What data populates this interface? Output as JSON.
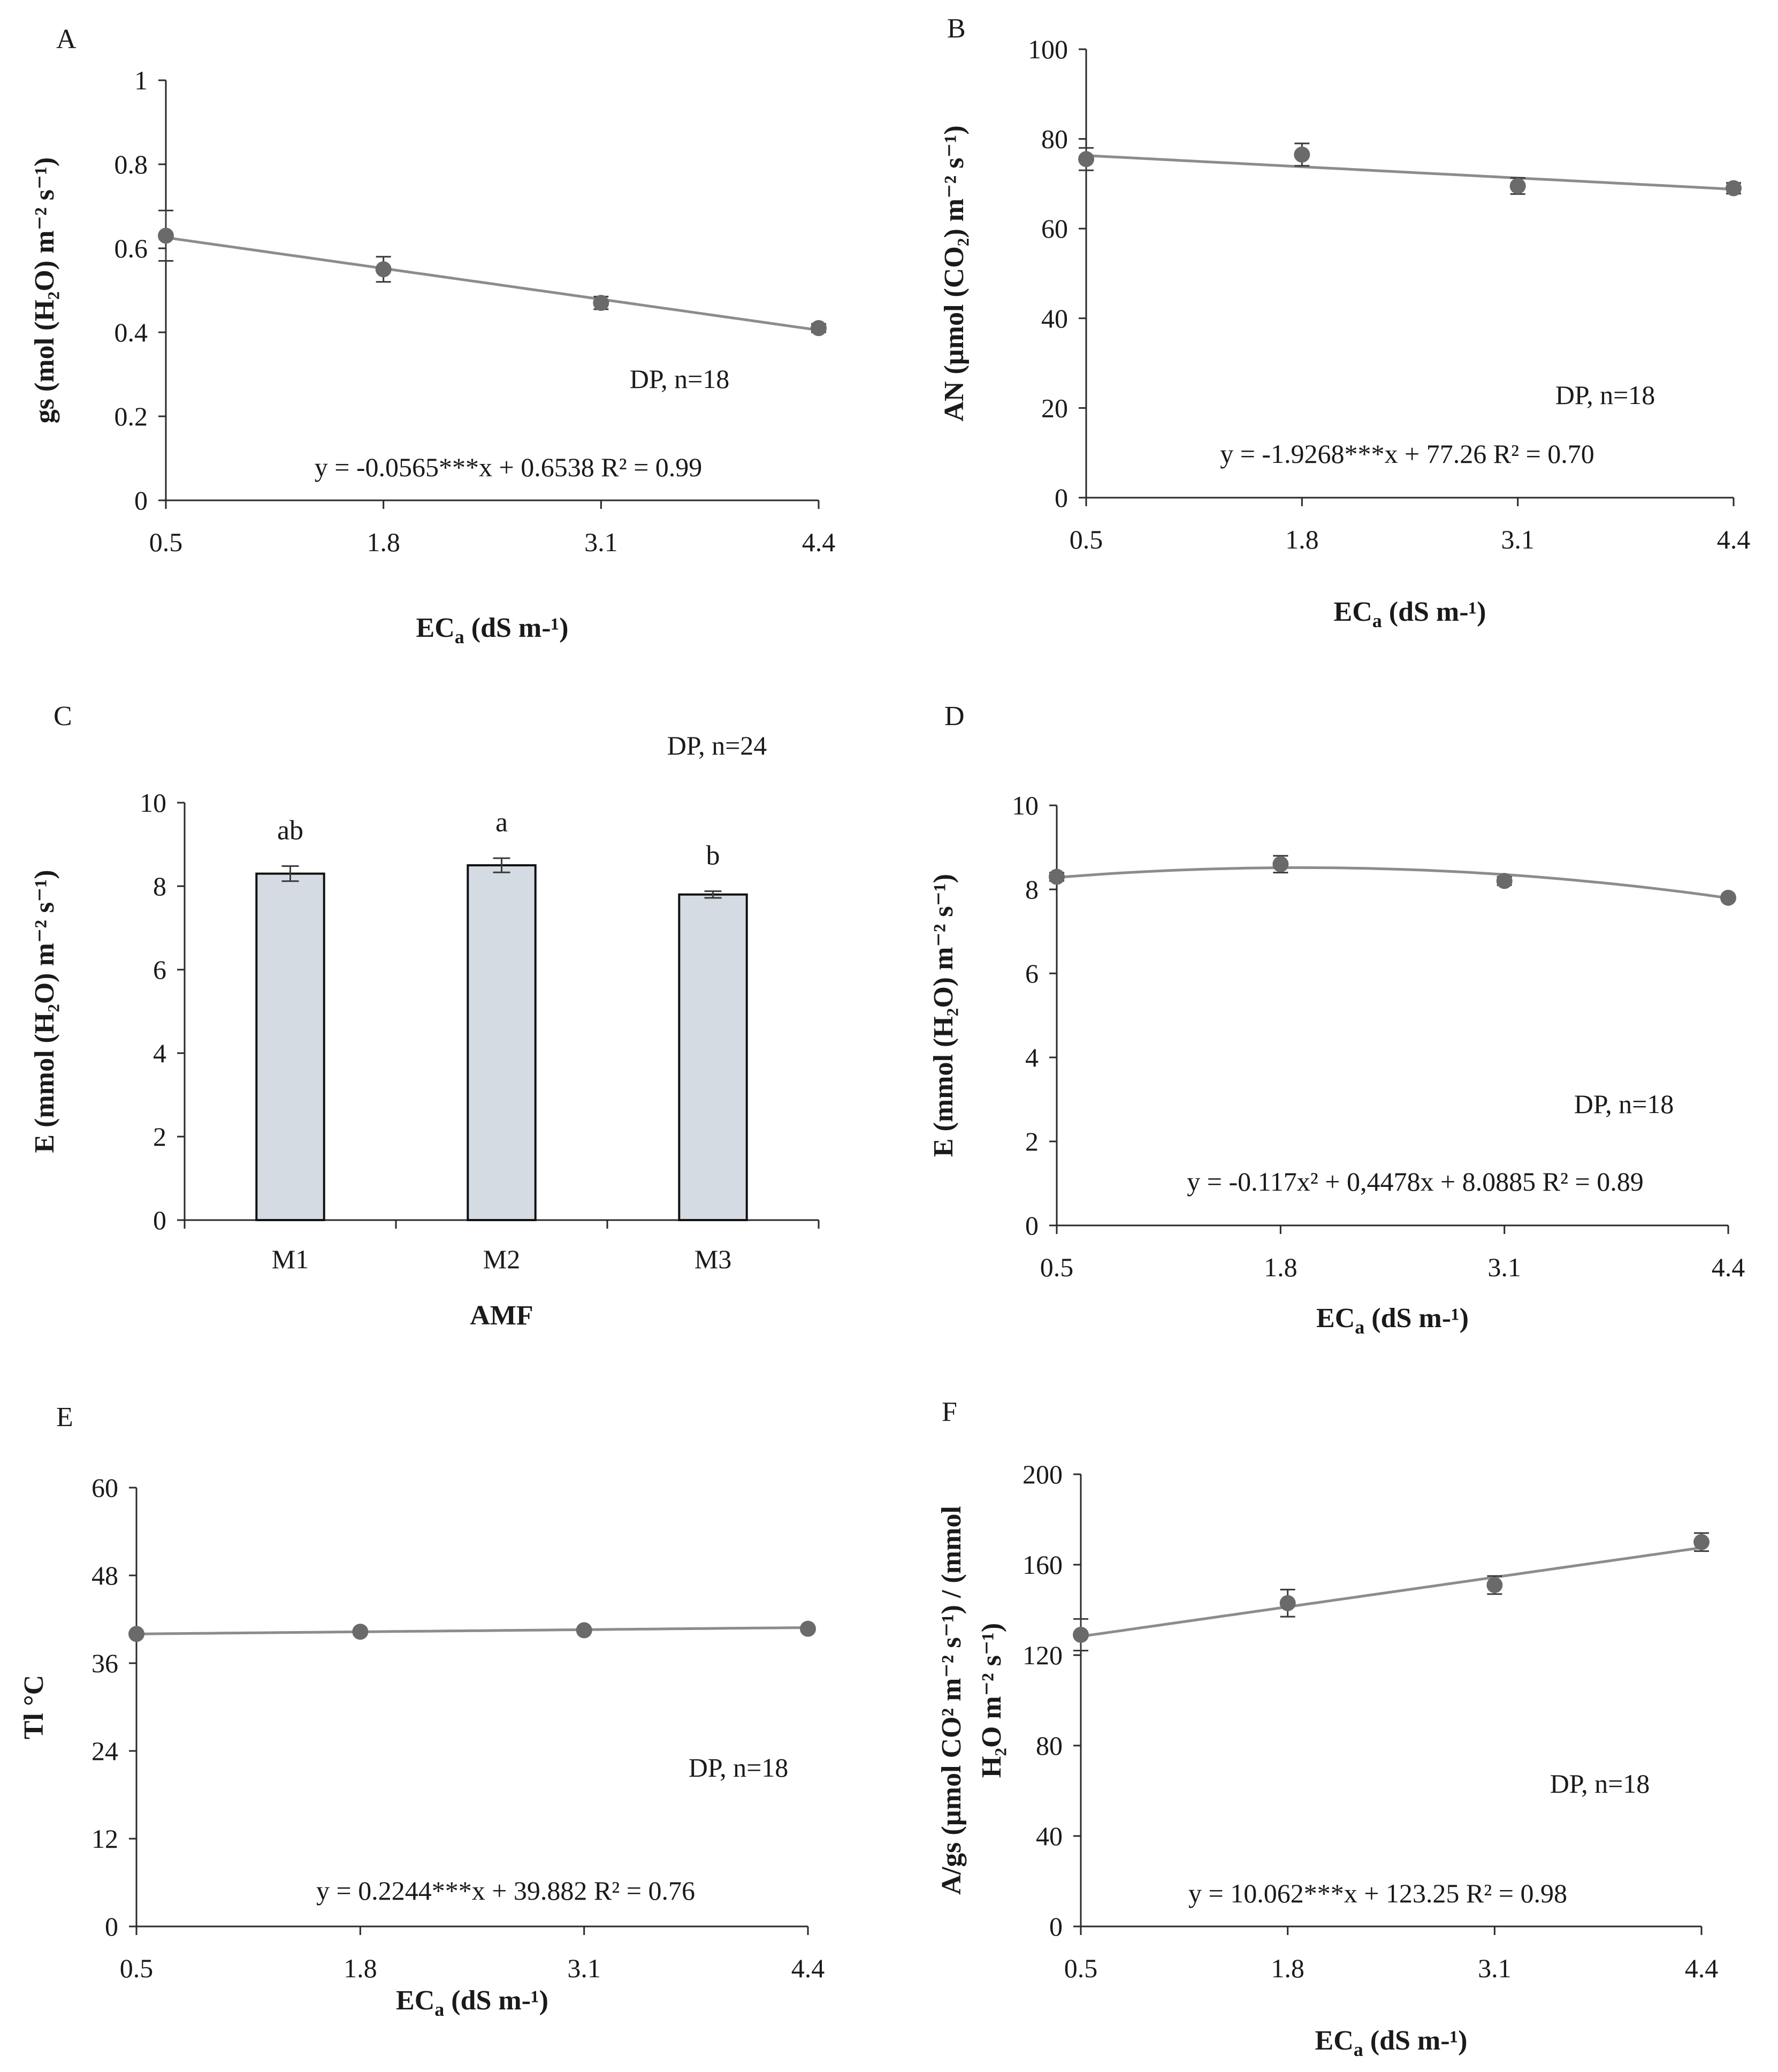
{
  "chart_data": [
    {
      "panel": "A",
      "type": "scatter",
      "xlabel": "EC",
      "xlabel_sub": "a",
      "xlabel_unit": " (dS m-¹)",
      "ylabel": "gs (mol (H₂O) m⁻² s⁻¹)",
      "x_ticks": [
        "0.5",
        "1.8",
        "3.1",
        "4.4"
      ],
      "y_ticks": [
        "0",
        "0.2",
        "0.4",
        "0.6",
        "0.8",
        "1"
      ],
      "ylim": [
        0,
        1
      ],
      "x": [
        0.5,
        1.8,
        3.1,
        4.4
      ],
      "y": [
        0.63,
        0.55,
        0.47,
        0.41
      ],
      "error": [
        0.06,
        0.03,
        0.015,
        0.01
      ],
      "fit": {
        "a": 0,
        "b": -0.0565,
        "c": 0.6538
      },
      "equation": "y = -0.0565***x + 0.6538  R² = 0.99",
      "annotation": "DP, n=18"
    },
    {
      "panel": "B",
      "type": "scatter",
      "xlabel": "EC",
      "xlabel_sub": "a",
      "xlabel_unit": " (dS m-¹)",
      "ylabel": "AN (µmol (CO₂) m⁻² s⁻¹)",
      "x_ticks": [
        "0.5",
        "1.8",
        "3.1",
        "4.4"
      ],
      "y_ticks": [
        "0",
        "20",
        "40",
        "60",
        "80",
        "100"
      ],
      "ylim": [
        0,
        100
      ],
      "x": [
        0.5,
        1.8,
        3.1,
        4.4
      ],
      "y": [
        75.5,
        76.5,
        69.5,
        69
      ],
      "error": [
        2.5,
        2.5,
        1.8,
        1.2
      ],
      "fit": {
        "a": 0,
        "b": -1.9268,
        "c": 77.26
      },
      "equation": "y = -1.9268***x + 77.26 R² = 0.70",
      "annotation": "DP, n=18"
    },
    {
      "panel": "C",
      "type": "bar",
      "xlabel": "AMF",
      "ylabel": "E (mmol (H₂O) m⁻² s⁻¹)",
      "categories": [
        "M1",
        "M2",
        "M3"
      ],
      "values": [
        8.3,
        8.5,
        7.8
      ],
      "error": [
        0.18,
        0.17,
        0.08
      ],
      "letters": [
        "ab",
        "a",
        "b"
      ],
      "y_ticks": [
        "0",
        "2",
        "4",
        "6",
        "8",
        "10"
      ],
      "ylim": [
        0,
        10
      ],
      "annotation": "DP, n=24"
    },
    {
      "panel": "D",
      "type": "scatter",
      "xlabel": "EC",
      "xlabel_sub": "a",
      "xlabel_unit": " (dS m-¹)",
      "ylabel": "E (mmol (H₂O) m⁻² s⁻¹)",
      "x_ticks": [
        "0.5",
        "1.8",
        "3.1",
        "4.4"
      ],
      "y_ticks": [
        "0",
        "2",
        "4",
        "6",
        "8",
        "10"
      ],
      "ylim": [
        0,
        10
      ],
      "x": [
        0.5,
        1.8,
        3.1,
        4.4
      ],
      "y": [
        8.3,
        8.6,
        8.2,
        7.8
      ],
      "error": [
        0.1,
        0.2,
        0.1,
        0.05
      ],
      "fit": {
        "a": -0.117,
        "b": 0.4478,
        "c": 8.0885
      },
      "equation": "y = -0.117x² + 0,4478x + 8.0885 R² = 0.89",
      "annotation": "DP, n=18"
    },
    {
      "panel": "E",
      "type": "scatter",
      "xlabel": "EC",
      "xlabel_sub": "a",
      "xlabel_unit": " (dS m-¹)",
      "ylabel": "Tl °C",
      "x_ticks": [
        "0.5",
        "1.8",
        "3.1",
        "4.4"
      ],
      "y_ticks": [
        "0",
        "12",
        "24",
        "36",
        "48",
        "60"
      ],
      "ylim": [
        0,
        60
      ],
      "x": [
        0.5,
        1.8,
        3.1,
        4.4
      ],
      "y": [
        40.0,
        40.3,
        40.5,
        40.7
      ],
      "error": [
        0.2,
        0.2,
        0.2,
        0.2
      ],
      "fit": {
        "a": 0,
        "b": 0.2244,
        "c": 39.882
      },
      "equation": "y = 0.2244***x + 39.882 R² = 0.76",
      "annotation": "DP, n=18"
    },
    {
      "panel": "F",
      "type": "scatter",
      "xlabel": "EC",
      "xlabel_sub": "a",
      "xlabel_unit": " (dS m-¹)",
      "ylabel": "A/gs (µmol CO² m⁻² s⁻¹) / (mmol",
      "ylabel2": "H₂O m⁻² s⁻¹)",
      "x_ticks": [
        "0.5",
        "1.8",
        "3.1",
        "4.4"
      ],
      "y_ticks": [
        "0",
        "40",
        "80",
        "120",
        "160",
        "200"
      ],
      "ylim": [
        0,
        200
      ],
      "x": [
        0.5,
        1.8,
        3.1,
        4.4
      ],
      "y": [
        129,
        143,
        151,
        170
      ],
      "error": [
        7,
        6,
        4,
        4
      ],
      "fit": {
        "a": 0,
        "b": 10.062,
        "c": 123.25
      },
      "equation": "y = 10.062***x + 123.25 R² = 0.98",
      "annotation": "DP, n=18"
    }
  ]
}
